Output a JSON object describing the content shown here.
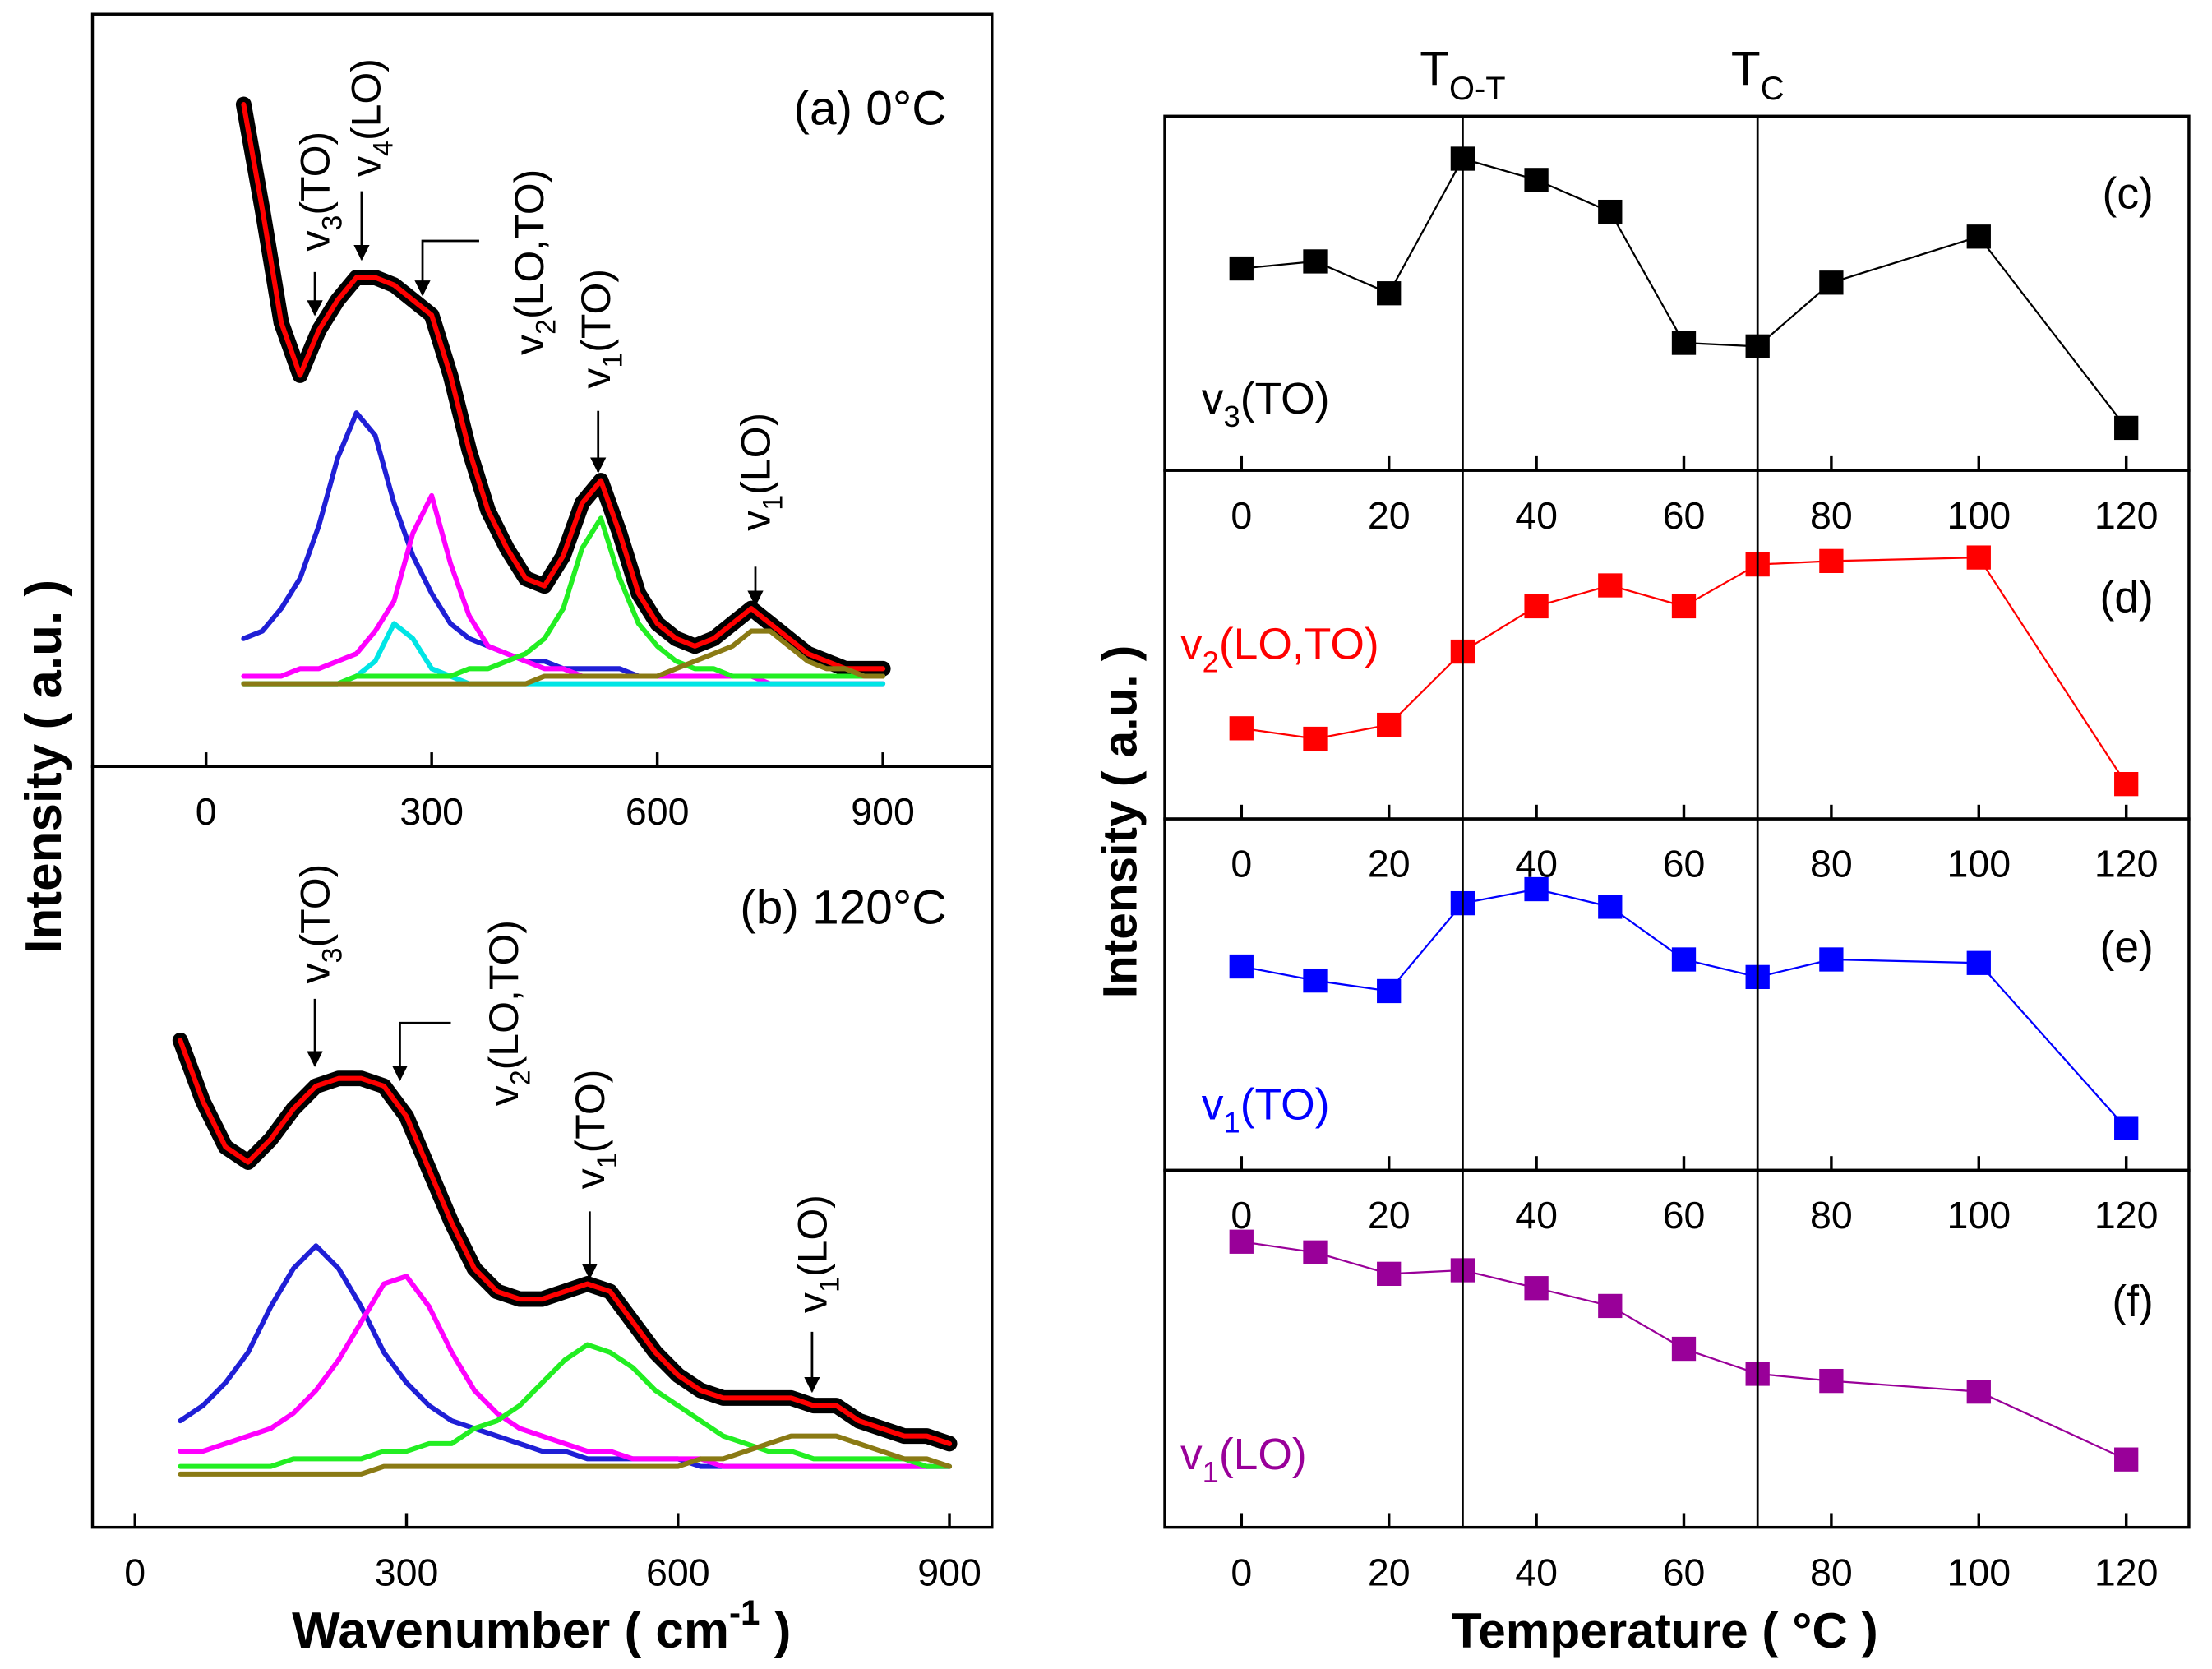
{
  "chart_data": [
    {
      "type": "line",
      "title": "(a) 0°C",
      "x": [
        50,
        75,
        100,
        125,
        150,
        175,
        200,
        225,
        250,
        275,
        300,
        325,
        350,
        375,
        400,
        425,
        450,
        475,
        500,
        525,
        550,
        575,
        600,
        625,
        650,
        675,
        700,
        725,
        750,
        775,
        800,
        825,
        850,
        875,
        900
      ],
      "xlim": [
        -151,
        1045
      ],
      "xticks": [
        0,
        300,
        600,
        900
      ],
      "ylim": [
        0,
        100
      ],
      "series": [
        {
          "color": "#000000",
          "values": [
            88,
            74,
            59,
            52,
            58,
            62,
            65,
            65,
            64,
            62,
            60,
            52,
            42,
            34,
            29,
            25,
            24,
            28,
            35,
            38,
            31,
            23,
            19,
            17,
            16,
            17,
            19,
            21,
            19,
            17,
            15,
            14,
            13,
            13,
            13
          ]
        },
        {
          "color": "#ff0000",
          "values": [
            88,
            74,
            59,
            52,
            58,
            62,
            65,
            65,
            64,
            62,
            60,
            52,
            42,
            34,
            29,
            25,
            24,
            28,
            35,
            38,
            31,
            23,
            19,
            17,
            16,
            17,
            19,
            21,
            19,
            17,
            15,
            14,
            13,
            13,
            13
          ]
        },
        {
          "color": "#1f1fd6",
          "values": [
            17,
            18,
            21,
            25,
            32,
            41,
            47,
            44,
            35,
            28,
            23,
            19,
            17,
            16,
            15,
            14,
            14,
            13,
            13,
            13,
            13,
            12,
            12,
            12,
            12,
            12,
            12,
            12,
            12,
            12,
            12,
            12,
            12,
            12,
            12
          ]
        },
        {
          "color": "#ff00ff",
          "values": [
            12,
            12,
            12,
            13,
            13,
            14,
            15,
            18,
            22,
            31,
            36,
            27,
            20,
            16,
            15,
            14,
            13,
            13,
            12,
            12,
            12,
            12,
            12,
            12,
            12,
            12,
            12,
            12,
            11,
            11,
            11,
            11,
            11,
            11,
            11
          ]
        },
        {
          "color": "#00e5e5",
          "values": [
            11,
            11,
            11,
            11,
            11,
            11,
            12,
            14,
            19,
            17,
            13,
            12,
            11,
            11,
            11,
            11,
            11,
            11,
            11,
            11,
            11,
            11,
            11,
            11,
            11,
            11,
            11,
            11,
            11,
            11,
            11,
            11,
            11,
            11,
            11
          ]
        },
        {
          "color": "#22ee22",
          "values": [
            11,
            11,
            11,
            11,
            11,
            11,
            12,
            12,
            12,
            12,
            12,
            12,
            13,
            13,
            14,
            15,
            17,
            21,
            29,
            33,
            25,
            19,
            16,
            14,
            13,
            13,
            12,
            12,
            12,
            12,
            12,
            12,
            12,
            12,
            12
          ]
        },
        {
          "color": "#8a7a14",
          "values": [
            11,
            11,
            11,
            11,
            11,
            11,
            11,
            11,
            11,
            11,
            11,
            11,
            11,
            11,
            11,
            11,
            12,
            12,
            12,
            12,
            12,
            12,
            12,
            13,
            14,
            15,
            16,
            18,
            18,
            16,
            14,
            13,
            13,
            12,
            12
          ]
        }
      ],
      "annotations": [
        {
          "base": "v",
          "sub": "3",
          "suffix": "(TO)"
        },
        {
          "base": "v",
          "sub": "4",
          "suffix": "(LO)"
        },
        {
          "base": "v",
          "sub": "2",
          "suffix": "(LO,TO)"
        },
        {
          "base": "v",
          "sub": "1",
          "suffix": "(TO)"
        },
        {
          "base": "v",
          "sub": "1",
          "suffix": "(LO)"
        }
      ]
    },
    {
      "type": "line",
      "title": "(b) 120°C",
      "x": [
        50,
        75,
        100,
        125,
        150,
        175,
        200,
        225,
        250,
        275,
        300,
        325,
        350,
        375,
        400,
        425,
        450,
        475,
        500,
        525,
        550,
        575,
        600,
        625,
        650,
        675,
        700,
        725,
        750,
        775,
        800,
        825,
        850,
        875,
        900
      ],
      "xlim": [
        -47,
        947
      ],
      "xticks": [
        0,
        300,
        600,
        900
      ],
      "ylim": [
        0,
        100
      ],
      "series": [
        {
          "color": "#000000",
          "values": [
            64,
            56,
            50,
            48,
            51,
            55,
            58,
            59,
            59,
            58,
            54,
            47,
            40,
            34,
            31,
            30,
            30,
            31,
            32,
            31,
            27,
            23,
            20,
            18,
            17,
            17,
            17,
            17,
            16,
            16,
            14,
            13,
            12,
            12,
            11
          ]
        },
        {
          "color": "#ff0000",
          "values": [
            64,
            56,
            50,
            48,
            51,
            55,
            58,
            59,
            59,
            58,
            54,
            47,
            40,
            34,
            31,
            30,
            30,
            31,
            32,
            31,
            27,
            23,
            20,
            18,
            17,
            17,
            17,
            17,
            16,
            16,
            14,
            13,
            12,
            12,
            11
          ]
        },
        {
          "color": "#1f1fd6",
          "values": [
            14,
            16,
            19,
            23,
            29,
            34,
            37,
            34,
            29,
            23,
            19,
            16,
            14,
            13,
            12,
            11,
            10,
            10,
            9,
            9,
            9,
            9,
            9,
            8,
            8,
            8,
            8,
            8,
            8,
            8,
            8,
            8,
            8,
            8,
            8
          ]
        },
        {
          "color": "#ff00ff",
          "values": [
            10,
            10,
            11,
            12,
            13,
            15,
            18,
            22,
            27,
            32,
            33,
            29,
            23,
            18,
            15,
            13,
            12,
            11,
            10,
            10,
            9,
            9,
            9,
            9,
            8,
            8,
            8,
            8,
            8,
            8,
            8,
            8,
            8,
            8,
            8
          ]
        },
        {
          "color": "#22ee22",
          "values": [
            8,
            8,
            8,
            8,
            8,
            9,
            9,
            9,
            9,
            10,
            10,
            11,
            11,
            13,
            14,
            16,
            19,
            22,
            24,
            23,
            21,
            18,
            16,
            14,
            12,
            11,
            10,
            10,
            9,
            9,
            9,
            9,
            9,
            8,
            8
          ]
        },
        {
          "color": "#8a7a14",
          "values": [
            7,
            7,
            7,
            7,
            7,
            7,
            7,
            7,
            7,
            8,
            8,
            8,
            8,
            8,
            8,
            8,
            8,
            8,
            8,
            8,
            8,
            8,
            8,
            9,
            9,
            10,
            11,
            12,
            12,
            12,
            11,
            10,
            9,
            9,
            8
          ]
        }
      ],
      "annotations": [
        {
          "base": "v",
          "sub": "3",
          "suffix": "(TO)"
        },
        {
          "base": "v",
          "sub": "2",
          "suffix": "(LO,TO)"
        },
        {
          "base": "v",
          "sub": "1",
          "suffix": "(TO)"
        },
        {
          "base": "v",
          "sub": "1",
          "suffix": "(LO)"
        }
      ]
    },
    {
      "type": "line",
      "title": "(c)",
      "label": {
        "base": "v",
        "sub": "3",
        "suffix": "(TO)"
      },
      "x": [
        0,
        10,
        20,
        30,
        40,
        50,
        60,
        70,
        80,
        100,
        120
      ],
      "xlim": [
        -10.4,
        128.5
      ],
      "xticks": [
        0,
        20,
        40,
        60,
        80,
        100,
        120
      ],
      "ylim": [
        0,
        100
      ],
      "color": "#000000",
      "values": [
        57,
        59,
        50,
        88,
        82,
        73,
        36,
        35,
        53,
        66,
        12
      ]
    },
    {
      "type": "line",
      "title": "(d)",
      "label": {
        "base": "v",
        "sub": "2",
        "suffix": "(LO,TO)"
      },
      "x": [
        0,
        10,
        20,
        30,
        40,
        50,
        60,
        70,
        80,
        100,
        120
      ],
      "xlim": [
        -10.4,
        128.5
      ],
      "xticks": [
        0,
        20,
        40,
        60,
        80,
        100,
        120
      ],
      "ylim": [
        0,
        100
      ],
      "color": "#ff0000",
      "values": [
        26,
        23,
        27,
        48,
        61,
        67,
        61,
        73,
        74,
        75,
        10
      ]
    },
    {
      "type": "line",
      "title": "(e)",
      "label": {
        "base": "v",
        "sub": "1",
        "suffix": "(TO)"
      },
      "x": [
        0,
        10,
        20,
        30,
        40,
        50,
        60,
        70,
        80,
        100,
        120
      ],
      "xlim": [
        -10.4,
        128.5
      ],
      "xticks": [
        0,
        20,
        40,
        60,
        80,
        100,
        120
      ],
      "ylim": [
        0,
        100
      ],
      "color": "#0000ff",
      "values": [
        58,
        54,
        51,
        76,
        80,
        75,
        60,
        55,
        60,
        59,
        12
      ]
    },
    {
      "type": "line",
      "title": "(f)",
      "label": {
        "base": "v",
        "sub": "1",
        "suffix": "(LO)"
      },
      "x": [
        0,
        10,
        20,
        30,
        40,
        50,
        60,
        70,
        80,
        100,
        120
      ],
      "xlim": [
        -10.4,
        128.5
      ],
      "xticks": [
        0,
        20,
        40,
        60,
        80,
        100,
        120
      ],
      "ylim": [
        0,
        100
      ],
      "color": "#990099",
      "values": [
        80,
        77,
        71,
        72,
        67,
        62,
        50,
        43,
        41,
        38,
        19
      ]
    }
  ],
  "shared": {
    "left_ylabel": "Intensity ( a.u. )",
    "left_xlabel": {
      "text": "Wavenumber ( cm",
      "sup": "-1",
      "suffix": " )"
    },
    "right_ylabel": "Intensity ( a.u. )",
    "right_xlabel": "Temperature ( °C )",
    "markers": [
      {
        "x": 30,
        "base": "T",
        "sub": "O-T"
      },
      {
        "x": 70,
        "base": "T",
        "sub": "C"
      }
    ]
  }
}
